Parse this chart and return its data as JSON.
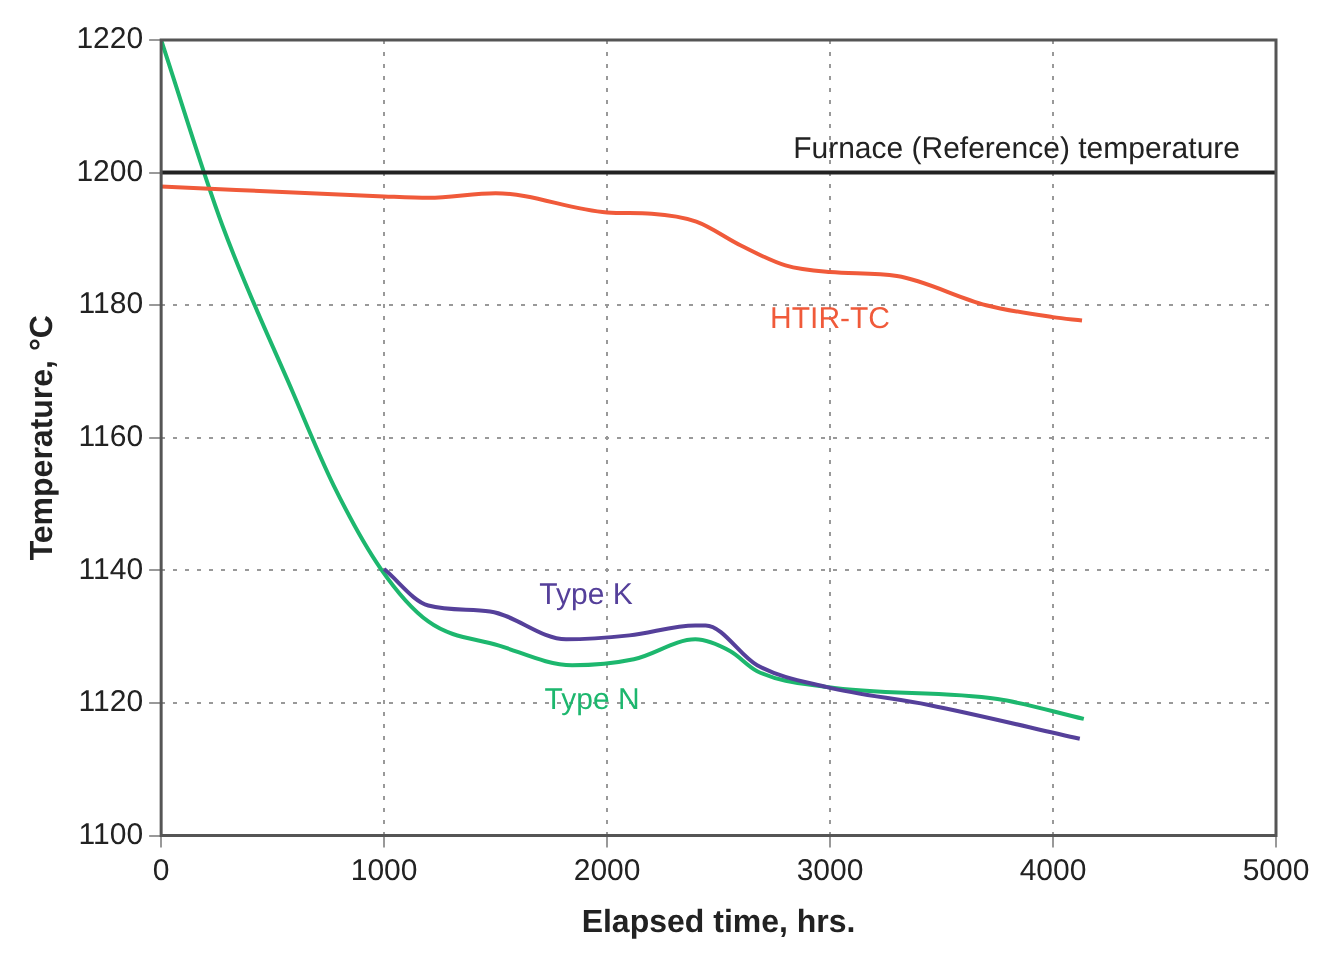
{
  "chart_data": {
    "type": "line",
    "xlabel": "Elapsed time, hrs.",
    "ylabel": "Temperature, °C",
    "xlim": [
      0,
      5000
    ],
    "xticks": [
      0,
      1000,
      2000,
      3000,
      4000,
      5000
    ],
    "ylim": [
      1100,
      1220
    ],
    "yticks": [
      1100,
      1120,
      1140,
      1160,
      1180,
      1200,
      1220
    ],
    "grid": true,
    "legend": false,
    "line_style": "solid",
    "marker": "none",
    "ref_lines": [
      {
        "axis": "y",
        "value": 1200,
        "label": "Furnace (Reference) temperature",
        "color": "#222222"
      }
    ],
    "series": [
      {
        "name": "HTIR-TC",
        "color": "#f05a3a",
        "x": [
          0,
          1000,
          1200,
          1500,
          2000,
          2200,
          2400,
          2600,
          2800,
          3000,
          3300,
          3700,
          4000,
          4130
        ],
        "values": [
          1197.9,
          1196.4,
          1196.2,
          1196.9,
          1194,
          1193.8,
          1192.6,
          1189,
          1186,
          1185,
          1184.4,
          1180,
          1178.2,
          1177.7
        ]
      },
      {
        "name": "Type K",
        "color": "#55409a",
        "x": [
          1000,
          1198,
          1475,
          1816,
          2100,
          2396,
          2442,
          2673,
          2986,
          3443,
          4120
        ],
        "values": [
          1140.2,
          1134.7,
          1133.8,
          1129.6,
          1130.2,
          1131.7,
          1131.7,
          1125.7,
          1122.4,
          1119.7,
          1114.6
        ]
      },
      {
        "name": "Type N",
        "color": "#1db76e",
        "x": [
          0,
          276,
          590,
          774,
          986,
          1198,
          1512,
          1843,
          2120,
          2396,
          2553,
          2673,
          2986,
          3751,
          4138
        ],
        "values": [
          1220,
          1191.9,
          1166.9,
          1152.8,
          1140.2,
          1132.3,
          1128.7,
          1125.7,
          1126.6,
          1129.6,
          1127.8,
          1124.8,
          1122.4,
          1120.6,
          1117.6
        ]
      }
    ]
  }
}
